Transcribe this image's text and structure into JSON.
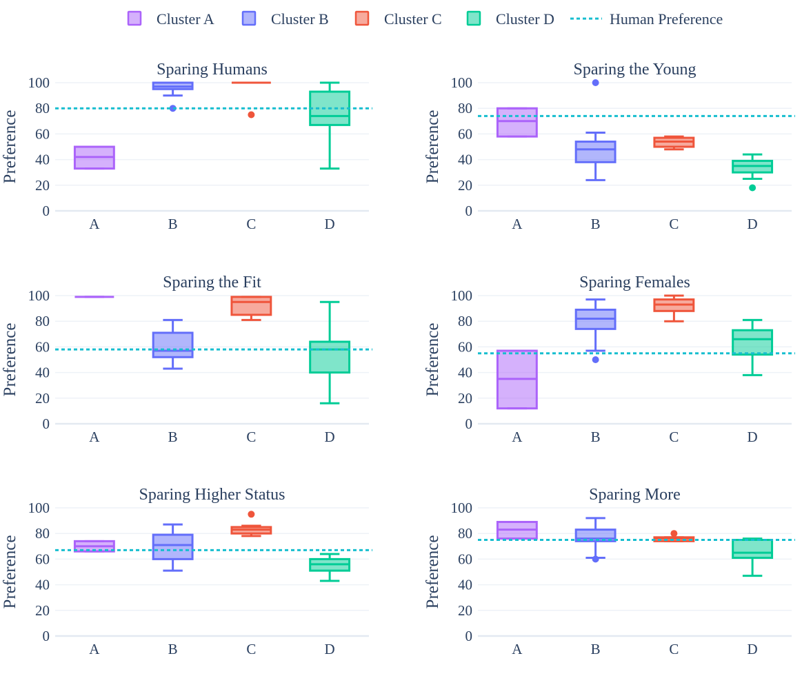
{
  "legend": {
    "items": [
      {
        "label": "Cluster A",
        "color": "#ab63fa"
      },
      {
        "label": "Cluster B",
        "color": "#636efa"
      },
      {
        "label": "Cluster C",
        "color": "#ef553b"
      },
      {
        "label": "Cluster D",
        "color": "#00cc96"
      }
    ],
    "reference": {
      "label": "Human Preference",
      "color": "#17becf"
    }
  },
  "chart_data": [
    {
      "type": "box",
      "title": "Sparing Humans",
      "ylabel": "Preference",
      "categories": [
        "A",
        "B",
        "C",
        "D"
      ],
      "yticks": [
        0,
        20,
        40,
        60,
        80,
        100
      ],
      "ylim": [
        0,
        100
      ],
      "human_preference": 80,
      "boxes": [
        {
          "cluster": "A",
          "lower": 33,
          "q1": 33,
          "median": 42,
          "q3": 50,
          "upper": 50,
          "outliers": []
        },
        {
          "cluster": "B",
          "lower": 90,
          "q1": 95,
          "median": 97,
          "q3": 100,
          "upper": 100,
          "outliers": [
            80
          ]
        },
        {
          "cluster": "C",
          "lower": 100,
          "q1": 100,
          "median": 100,
          "q3": 100,
          "upper": 100,
          "outliers": [
            75
          ]
        },
        {
          "cluster": "D",
          "lower": 33,
          "q1": 67,
          "median": 74,
          "q3": 93,
          "upper": 100,
          "outliers": []
        }
      ]
    },
    {
      "type": "box",
      "title": "Sparing the Young",
      "ylabel": "Preference",
      "categories": [
        "A",
        "B",
        "C",
        "D"
      ],
      "yticks": [
        0,
        20,
        40,
        60,
        80,
        100
      ],
      "ylim": [
        0,
        100
      ],
      "human_preference": 74,
      "boxes": [
        {
          "cluster": "A",
          "lower": 58,
          "q1": 58,
          "median": 70,
          "q3": 80,
          "upper": 80,
          "outliers": []
        },
        {
          "cluster": "B",
          "lower": 24,
          "q1": 38,
          "median": 48,
          "q3": 54,
          "upper": 61,
          "outliers": [
            100
          ]
        },
        {
          "cluster": "C",
          "lower": 48,
          "q1": 50,
          "median": 54,
          "q3": 57,
          "upper": 58,
          "outliers": []
        },
        {
          "cluster": "D",
          "lower": 25,
          "q1": 30,
          "median": 35,
          "q3": 39,
          "upper": 44,
          "outliers": [
            18
          ]
        }
      ]
    },
    {
      "type": "box",
      "title": "Sparing the Fit",
      "ylabel": "Preference",
      "categories": [
        "A",
        "B",
        "C",
        "D"
      ],
      "yticks": [
        0,
        20,
        40,
        60,
        80,
        100
      ],
      "ylim": [
        0,
        100
      ],
      "human_preference": 58,
      "boxes": [
        {
          "cluster": "A",
          "lower": 99,
          "q1": 99,
          "median": 99,
          "q3": 99,
          "upper": 99,
          "outliers": []
        },
        {
          "cluster": "B",
          "lower": 43,
          "q1": 52,
          "median": 57,
          "q3": 71,
          "upper": 81,
          "outliers": []
        },
        {
          "cluster": "C",
          "lower": 81,
          "q1": 85,
          "median": 95,
          "q3": 99,
          "upper": 99,
          "outliers": []
        },
        {
          "cluster": "D",
          "lower": 16,
          "q1": 40,
          "median": 58,
          "q3": 64,
          "upper": 95,
          "outliers": []
        }
      ]
    },
    {
      "type": "box",
      "title": "Sparing Females",
      "ylabel": "Preference",
      "categories": [
        "A",
        "B",
        "C",
        "D"
      ],
      "yticks": [
        0,
        20,
        40,
        60,
        80,
        100
      ],
      "ylim": [
        0,
        100
      ],
      "human_preference": 55,
      "boxes": [
        {
          "cluster": "A",
          "lower": 12,
          "q1": 12,
          "median": 35,
          "q3": 57,
          "upper": 57,
          "outliers": []
        },
        {
          "cluster": "B",
          "lower": 57,
          "q1": 74,
          "median": 82,
          "q3": 89,
          "upper": 97,
          "outliers": [
            50
          ]
        },
        {
          "cluster": "C",
          "lower": 80,
          "q1": 88,
          "median": 93,
          "q3": 97,
          "upper": 100,
          "outliers": []
        },
        {
          "cluster": "D",
          "lower": 38,
          "q1": 54,
          "median": 66,
          "q3": 73,
          "upper": 81,
          "outliers": []
        }
      ]
    },
    {
      "type": "box",
      "title": "Sparing Higher Status",
      "ylabel": "Preference",
      "categories": [
        "A",
        "B",
        "C",
        "D"
      ],
      "yticks": [
        0,
        20,
        40,
        60,
        80,
        100
      ],
      "ylim": [
        0,
        100
      ],
      "human_preference": 67,
      "boxes": [
        {
          "cluster": "A",
          "lower": 66,
          "q1": 66,
          "median": 70,
          "q3": 74,
          "upper": 74,
          "outliers": []
        },
        {
          "cluster": "B",
          "lower": 51,
          "q1": 60,
          "median": 71,
          "q3": 79,
          "upper": 87,
          "outliers": []
        },
        {
          "cluster": "C",
          "lower": 78,
          "q1": 80,
          "median": 83,
          "q3": 85,
          "upper": 86,
          "outliers": [
            95
          ]
        },
        {
          "cluster": "D",
          "lower": 43,
          "q1": 51,
          "median": 56,
          "q3": 60,
          "upper": 64,
          "outliers": []
        }
      ]
    },
    {
      "type": "box",
      "title": "Sparing More",
      "ylabel": "Preference",
      "categories": [
        "A",
        "B",
        "C",
        "D"
      ],
      "yticks": [
        0,
        20,
        40,
        60,
        80,
        100
      ],
      "ylim": [
        0,
        100
      ],
      "human_preference": 75,
      "boxes": [
        {
          "cluster": "A",
          "lower": 76,
          "q1": 76,
          "median": 83,
          "q3": 89,
          "upper": 89,
          "outliers": []
        },
        {
          "cluster": "B",
          "lower": 61,
          "q1": 74,
          "median": 76,
          "q3": 83,
          "upper": 92,
          "outliers": [
            60
          ]
        },
        {
          "cluster": "C",
          "lower": 74,
          "q1": 74,
          "median": 76,
          "q3": 77,
          "upper": 77,
          "outliers": [
            80
          ]
        },
        {
          "cluster": "D",
          "lower": 47,
          "q1": 61,
          "median": 65,
          "q3": 75,
          "upper": 76,
          "outliers": []
        }
      ]
    }
  ]
}
